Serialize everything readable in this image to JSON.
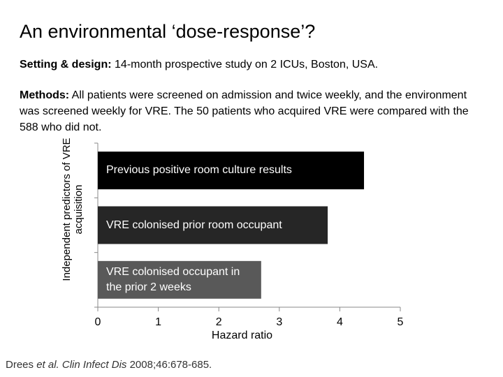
{
  "title": "An environmental ‘dose-response’?",
  "setting": {
    "label": "Setting & design:",
    "text": "14-month prospective study on 2 ICUs, Boston, USA."
  },
  "methods": {
    "label": "Methods:",
    "text": "All patients were screened on admission and twice weekly, and the environment was screened weekly for VRE. The 50 patients who acquired VRE were compared with the 588 who did not."
  },
  "chart_data": {
    "type": "bar",
    "orientation": "horizontal",
    "y_label": "Independent predictors of VRE acquisition",
    "x_label": "Hazard ratio",
    "categories": [
      "Previous positive room culture results",
      "VRE colonised prior room occupant",
      "VRE colonised occupant in the prior 2 weeks"
    ],
    "values": [
      4.4,
      3.8,
      2.7
    ],
    "colors": [
      "#000000",
      "#262626",
      "#595959"
    ],
    "xlim": [
      0,
      5
    ],
    "xticks": [
      0,
      1,
      2,
      3,
      4,
      5
    ]
  },
  "citation": {
    "author": "Drees",
    "etal": "et al.",
    "journal": "Clin Infect Dis",
    "details": "2008;46:678-685."
  }
}
